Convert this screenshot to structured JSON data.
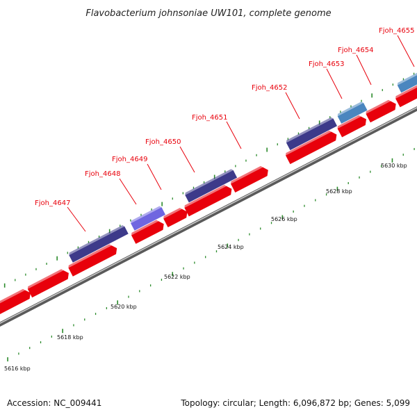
{
  "title": "Flavobacterium johnsoniae UW101, complete genome",
  "colors": {
    "backbone": "#8c8c8c",
    "cds_forward": "#e8000b",
    "cds_reverse_dark": "#3d3a8a",
    "cds_reverse_light": "#6f66e0",
    "cds_reverse_blue": "#4a86bf",
    "tick": "#2a8a2a",
    "label": "#e8000b"
  },
  "genes": [
    {
      "id": "Fjoh_4647",
      "strand": "reverse",
      "color": "cds_reverse_dark"
    },
    {
      "id": "Fjoh_4648",
      "strand": "reverse",
      "color": "cds_reverse_light"
    },
    {
      "id": "Fjoh_4649",
      "strand": "forward",
      "color": "cds_forward"
    },
    {
      "id": "Fjoh_4650",
      "strand": "reverse",
      "color": "cds_reverse_dark"
    },
    {
      "id": "Fjoh_4651",
      "strand": "forward",
      "color": "cds_forward"
    },
    {
      "id": "Fjoh_4652",
      "strand": "reverse",
      "color": "cds_reverse_dark"
    },
    {
      "id": "Fjoh_4653",
      "strand": "reverse",
      "color": "cds_reverse_blue"
    },
    {
      "id": "Fjoh_4654",
      "strand": "forward",
      "color": "cds_forward"
    },
    {
      "id": "Fjoh_4655",
      "strand": "reverse",
      "color": "cds_reverse_blue"
    }
  ],
  "kbp_labels": [
    "5616 kbp",
    "5618 kbp",
    "5620 kbp",
    "5622 kbp",
    "5624 kbp",
    "5626 kbp",
    "5628 kbp",
    "5630 kbp"
  ],
  "footer": {
    "accession": "Accession: NC_009441",
    "summary": "Topology: circular; Length: 6,096,872 bp; Genes: 5,099"
  }
}
